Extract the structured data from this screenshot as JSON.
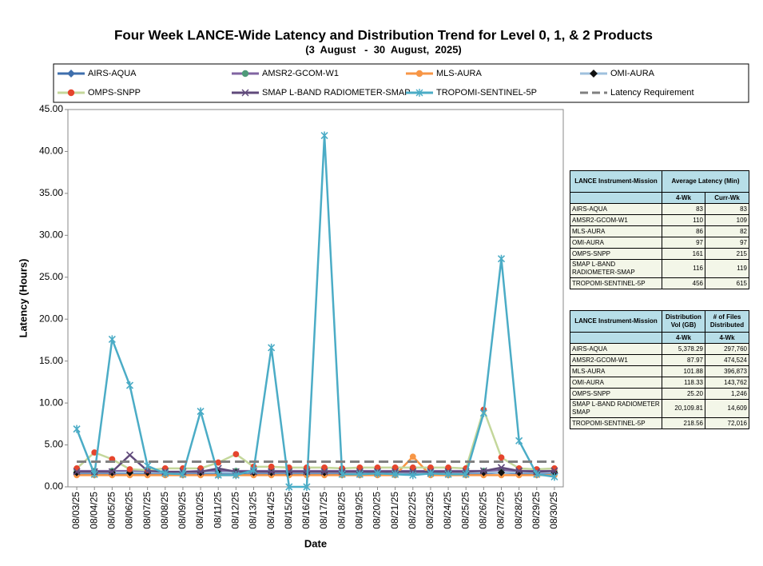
{
  "chart_data": {
    "type": "line",
    "title": "Four Week LANCE-Wide Latency and Distribution Trend for Level 0, 1, & 2 Products",
    "subtitle": "(3  August   -  30  August,  2025)",
    "x_label": "Date",
    "y_label": "Latency (Hours)",
    "categories": [
      "08/03/25",
      "08/04/25",
      "08/05/25",
      "08/06/25",
      "08/07/25",
      "08/08/25",
      "08/09/25",
      "08/10/25",
      "08/11/25",
      "08/12/25",
      "08/13/25",
      "08/14/25",
      "08/15/25",
      "08/16/25",
      "08/17/25",
      "08/18/25",
      "08/19/25",
      "08/20/25",
      "08/21/25",
      "08/22/25",
      "08/23/25",
      "08/24/25",
      "08/25/25",
      "08/26/25",
      "08/27/25",
      "08/28/25",
      "08/29/25",
      "08/30/25"
    ],
    "ylim": [
      0,
      45
    ],
    "yticks": [
      {
        "value": 0,
        "label": "0.00"
      },
      {
        "value": 5,
        "label": "5.00"
      },
      {
        "value": 10,
        "label": "10.00"
      },
      {
        "value": 15,
        "label": "15.00"
      },
      {
        "value": 20,
        "label": "20.00"
      },
      {
        "value": 25,
        "label": "25.00"
      },
      {
        "value": 30,
        "label": "30.00"
      },
      {
        "value": 35,
        "label": "35.00"
      },
      {
        "value": 40,
        "label": "40.00"
      },
      {
        "value": 45,
        "label": "45.00"
      }
    ],
    "series": [
      {
        "name": "AIRS-AQUA",
        "color": "#3f6fad",
        "marker": "diamond",
        "marker_color": "#3f6fad",
        "values": [
          1.6,
          1.6,
          1.6,
          1.6,
          1.6,
          1.6,
          1.5,
          1.6,
          1.6,
          1.6,
          1.6,
          1.6,
          1.5,
          1.5,
          1.6,
          1.6,
          1.6,
          1.6,
          1.6,
          1.6,
          1.6,
          1.6,
          1.6,
          1.6,
          1.7,
          1.6,
          1.6,
          1.6
        ]
      },
      {
        "name": "AMSR2-GCOM-W1",
        "color": "#8064a2",
        "marker": "circle",
        "marker_color": "#4f9a7a",
        "values": [
          1.9,
          1.9,
          1.9,
          1.9,
          1.9,
          1.8,
          1.8,
          1.9,
          1.9,
          1.9,
          1.9,
          1.9,
          1.9,
          1.9,
          1.9,
          1.9,
          1.9,
          1.9,
          1.9,
          1.9,
          1.9,
          1.9,
          1.9,
          1.9,
          2.0,
          1.9,
          1.9,
          1.9
        ]
      },
      {
        "name": "MLS-AURA",
        "color": "#f79646",
        "marker": "circle",
        "marker_color": "#f79646",
        "values": [
          1.4,
          1.4,
          1.4,
          1.4,
          1.4,
          1.4,
          1.4,
          1.4,
          1.4,
          1.4,
          1.4,
          1.4,
          1.4,
          1.4,
          1.4,
          1.4,
          1.4,
          1.4,
          1.4,
          3.6,
          1.4,
          1.4,
          1.4,
          1.4,
          1.4,
          1.4,
          1.4,
          1.4
        ]
      },
      {
        "name": "OMI-AURA",
        "color": "#9fc0de",
        "marker": "diamond",
        "marker_color": "#111111",
        "values": [
          1.7,
          1.7,
          1.7,
          1.7,
          1.7,
          1.7,
          1.7,
          1.7,
          1.7,
          1.7,
          1.7,
          1.7,
          1.7,
          1.7,
          1.7,
          1.7,
          1.7,
          1.7,
          1.7,
          1.7,
          1.7,
          1.7,
          1.7,
          1.7,
          1.7,
          1.7,
          1.7,
          1.7
        ]
      },
      {
        "name": "OMPS-SNPP",
        "color": "#c4d79b",
        "marker": "circle",
        "marker_color": "#e5452d",
        "values": [
          2.2,
          4.1,
          3.3,
          2.1,
          2.0,
          2.2,
          2.2,
          2.2,
          2.9,
          3.9,
          2.4,
          2.4,
          2.3,
          2.3,
          2.3,
          2.2,
          2.3,
          2.3,
          2.3,
          2.3,
          2.3,
          2.3,
          2.2,
          9.2,
          3.5,
          2.2,
          2.1,
          2.2
        ]
      },
      {
        "name": "SMAP L-BAND RADIOMETER-SMAP",
        "color": "#604a7b",
        "marker": "x",
        "marker_color": "#604a7b",
        "values": [
          1.8,
          1.8,
          1.8,
          3.8,
          1.9,
          1.8,
          1.8,
          1.8,
          2.2,
          1.8,
          1.8,
          1.8,
          1.8,
          1.8,
          1.8,
          1.8,
          1.8,
          1.8,
          1.8,
          1.8,
          1.8,
          1.8,
          1.8,
          1.9,
          2.3,
          1.9,
          1.8,
          1.9
        ]
      },
      {
        "name": "TROPOMI-SENTINEL-5P",
        "color": "#4bacc6",
        "marker": "star",
        "marker_color": "#4bacc6",
        "values": [
          6.9,
          1.5,
          17.6,
          12.1,
          2.5,
          1.6,
          1.5,
          9.0,
          1.4,
          1.4,
          2.0,
          16.6,
          0.0,
          0.0,
          41.9,
          1.5,
          1.5,
          1.6,
          1.5,
          1.4,
          1.6,
          1.5,
          1.5,
          8.8,
          27.2,
          5.5,
          1.5,
          1.2
        ]
      },
      {
        "name": "Latency Requirement",
        "color": "#808080",
        "marker": "none",
        "dashed": true,
        "values": [
          3,
          3,
          3,
          3,
          3,
          3,
          3,
          3,
          3,
          3,
          3,
          3,
          3,
          3,
          3,
          3,
          3,
          3,
          3,
          3,
          3,
          3,
          3,
          3,
          3,
          3,
          3,
          3
        ]
      }
    ]
  },
  "latency_table": {
    "header": {
      "mission": "LANCE Instrument-Mission",
      "metric": "Average Latency (Min)",
      "col1": "4-Wk",
      "col2": "Curr-Wk"
    },
    "rows": [
      [
        "AIRS-AQUA",
        "83",
        "83"
      ],
      [
        "AMSR2-GCOM-W1",
        "110",
        "109"
      ],
      [
        "MLS-AURA",
        "86",
        "82"
      ],
      [
        "OMI-AURA",
        "97",
        "97"
      ],
      [
        "OMPS-SNPP",
        "161",
        "215"
      ],
      [
        "SMAP L-BAND RADIOMETER-SMAP",
        "116",
        "119"
      ],
      [
        "TROPOMI-SENTINEL-5P",
        "456",
        "615"
      ]
    ]
  },
  "distribution_table": {
    "header": {
      "mission": "LANCE Instrument-Mission",
      "metric1": "Distribution Vol (GB)",
      "metric2": "# of Files Distributed",
      "col1": "4-Wk",
      "col2": "4-Wk"
    },
    "rows": [
      [
        "AIRS-AQUA",
        "5,378.29",
        "297,760"
      ],
      [
        "AMSR2-GCOM-W1",
        "87.97",
        "474,524"
      ],
      [
        "MLS-AURA",
        "101.88",
        "396,873"
      ],
      [
        "OMI-AURA",
        "118.33",
        "143,762"
      ],
      [
        "OMPS-SNPP",
        "25.20",
        "1,246"
      ],
      [
        "SMAP L-BAND RADIOMETER SMAP",
        "20,109.81",
        "14,609"
      ],
      [
        "TROPOMI-SENTINEL-5P",
        "218.56",
        "72,016"
      ]
    ]
  }
}
